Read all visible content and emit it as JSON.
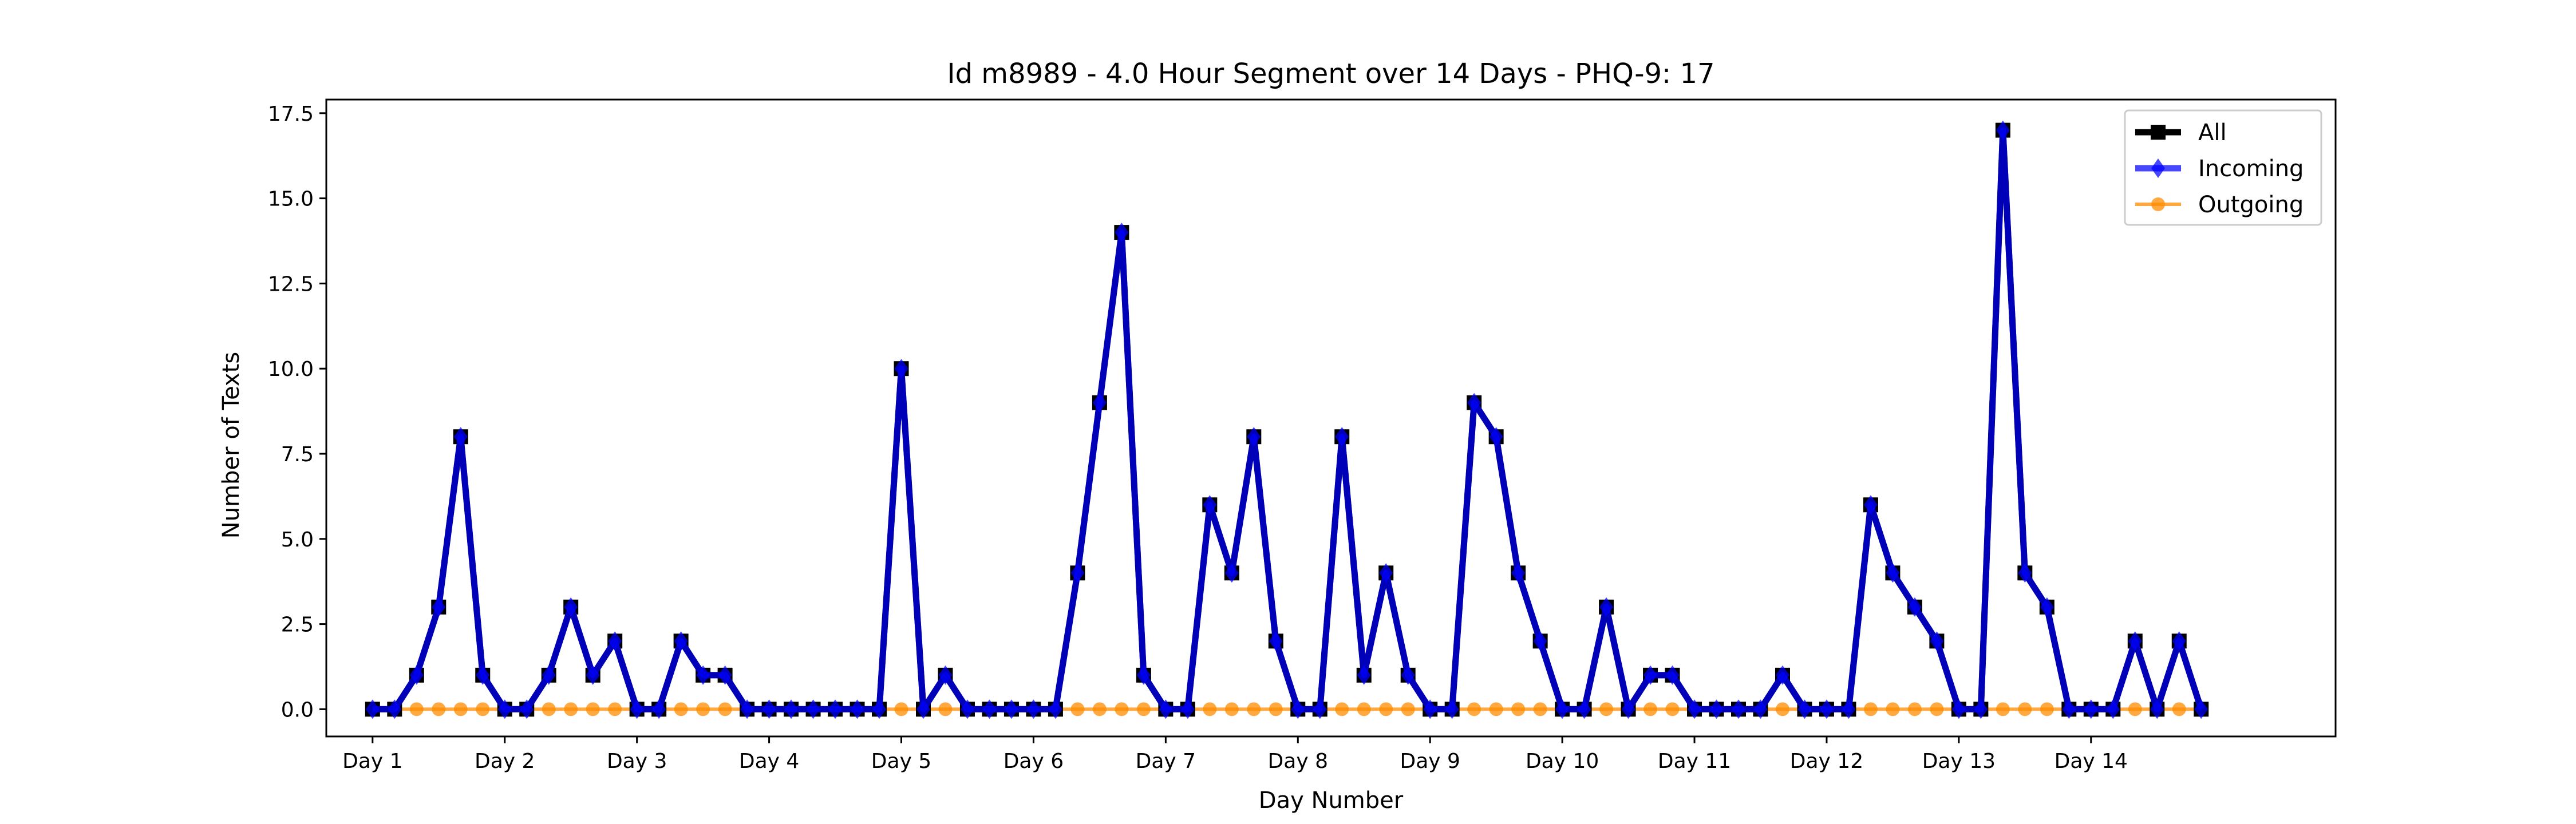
{
  "chart_data": {
    "type": "line",
    "title": "Id m8989 - 4.0 Hour Segment over 14 Days - PHQ-9: 17",
    "xlabel": "Day Number",
    "ylabel": "Number of Texts",
    "ylim": [
      -0.8,
      17.9
    ],
    "xlim": [
      -2.1,
      89.1
    ],
    "y_ticks": [
      "0.0",
      "2.5",
      "5.0",
      "7.5",
      "10.0",
      "12.5",
      "15.0",
      "17.5"
    ],
    "x_tick_labels": [
      "Day 1",
      "Day 2",
      "Day 3",
      "Day 4",
      "Day 5",
      "Day 6",
      "Day 7",
      "Day 8",
      "Day 9",
      "Day 10",
      "Day 11",
      "Day 12",
      "Day 13",
      "Day 14"
    ],
    "segments_per_day": 6,
    "grid": false,
    "legend_position": "top-right",
    "series": [
      {
        "name": "All",
        "color": "#000000",
        "marker": "square",
        "values": [
          0,
          0,
          1,
          3,
          8,
          1,
          0,
          0,
          1,
          3,
          1,
          2,
          0,
          0,
          2,
          1,
          1,
          0,
          0,
          0,
          0,
          0,
          0,
          0,
          10,
          0,
          1,
          0,
          0,
          0,
          0,
          0,
          4,
          9,
          14,
          1,
          0,
          0,
          6,
          4,
          8,
          2,
          0,
          0,
          8,
          1,
          4,
          1,
          0,
          0,
          9,
          8,
          4,
          2,
          0,
          0,
          3,
          0,
          1,
          1,
          0,
          0,
          0,
          0,
          1,
          0,
          0,
          0,
          6,
          4,
          3,
          2,
          0,
          0,
          17,
          4,
          3,
          0,
          0,
          0,
          2,
          0,
          2,
          0
        ]
      },
      {
        "name": "Incoming",
        "color": "#0000ff",
        "marker": "diamond",
        "values": [
          0,
          0,
          1,
          3,
          8,
          1,
          0,
          0,
          1,
          3,
          1,
          2,
          0,
          0,
          2,
          1,
          1,
          0,
          0,
          0,
          0,
          0,
          0,
          0,
          10,
          0,
          1,
          0,
          0,
          0,
          0,
          0,
          4,
          9,
          14,
          1,
          0,
          0,
          6,
          4,
          8,
          2,
          0,
          0,
          8,
          1,
          4,
          1,
          0,
          0,
          9,
          8,
          4,
          2,
          0,
          0,
          3,
          0,
          1,
          1,
          0,
          0,
          0,
          0,
          1,
          0,
          0,
          0,
          6,
          4,
          3,
          2,
          0,
          0,
          17,
          4,
          3,
          0,
          0,
          0,
          2,
          0,
          2,
          0
        ]
      },
      {
        "name": "Outgoing",
        "color": "#ff8c00",
        "marker": "circle",
        "values": [
          0,
          0,
          0,
          0,
          0,
          0,
          0,
          0,
          0,
          0,
          0,
          0,
          0,
          0,
          0,
          0,
          0,
          0,
          0,
          0,
          0,
          0,
          0,
          0,
          0,
          0,
          0,
          0,
          0,
          0,
          0,
          0,
          0,
          0,
          0,
          0,
          0,
          0,
          0,
          0,
          0,
          0,
          0,
          0,
          0,
          0,
          0,
          0,
          0,
          0,
          0,
          0,
          0,
          0,
          0,
          0,
          0,
          0,
          0,
          0,
          0,
          0,
          0,
          0,
          0,
          0,
          0,
          0,
          0,
          0,
          0,
          0,
          0,
          0,
          0,
          0,
          0,
          0,
          0,
          0,
          0,
          0,
          0,
          0
        ]
      }
    ]
  }
}
